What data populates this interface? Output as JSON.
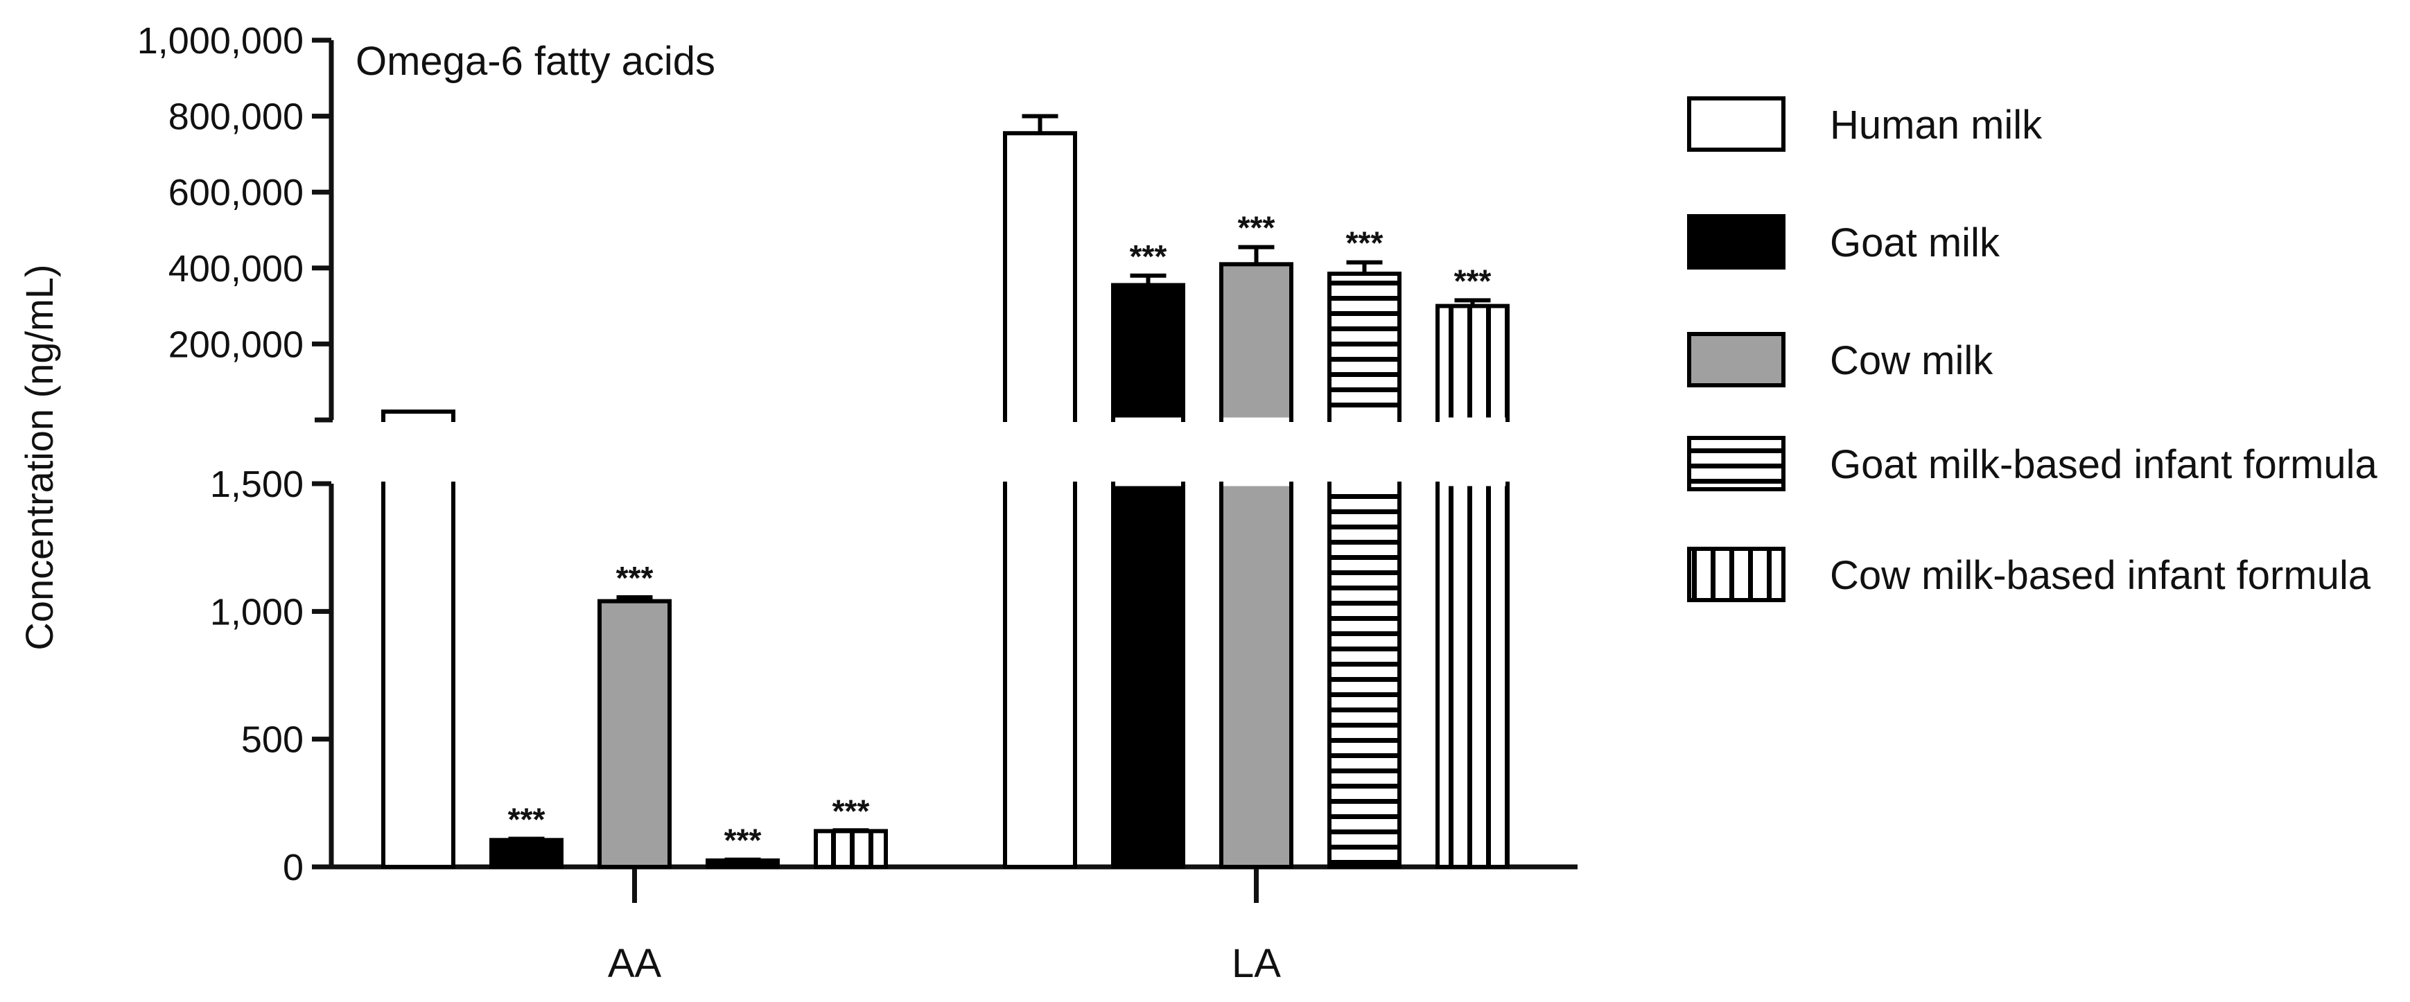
{
  "chart_data": {
    "type": "bar",
    "title": "Omega-6 fatty acids",
    "xlabel": "",
    "ylabel": "Concentration (ng/mL)",
    "categories": [
      "AA",
      "LA"
    ],
    "y_axis_broken": true,
    "lower_segment": {
      "ylim": [
        0,
        1500
      ],
      "ticks": [
        0,
        500,
        1000,
        1500
      ],
      "tick_labels": [
        "0",
        "500",
        "1,000",
        "1,500"
      ]
    },
    "upper_segment": {
      "ylim": [
        0,
        1000000
      ],
      "ticks": [
        200000,
        400000,
        600000,
        800000,
        1000000
      ],
      "tick_labels": [
        "200,000",
        "400,000",
        "600,000",
        "800,000",
        "1,000,000"
      ]
    },
    "series": [
      {
        "name": "Human milk",
        "pattern": "white",
        "values": [
          1700,
          755000
        ],
        "errors": [
          0,
          45000
        ],
        "significance": [
          "",
          ""
        ]
      },
      {
        "name": "Goat milk",
        "pattern": "black",
        "values": [
          105,
          355000
        ],
        "errors": [
          5,
          25000
        ],
        "significance": [
          "***",
          "***"
        ]
      },
      {
        "name": "Cow milk",
        "pattern": "gray",
        "values": [
          1040,
          410000
        ],
        "errors": [
          15,
          45000
        ],
        "significance": [
          "***",
          "***"
        ]
      },
      {
        "name": "Goat milk-based infant formula",
        "pattern": "horizontal-stripes",
        "values": [
          25,
          385000
        ],
        "errors": [
          3,
          30000
        ],
        "significance": [
          "***",
          "***"
        ]
      },
      {
        "name": "Cow milk-based infant formula",
        "pattern": "vertical-stripes",
        "values": [
          140,
          300000
        ],
        "errors": [
          3,
          15000
        ],
        "significance": [
          "***",
          "***"
        ]
      }
    ],
    "legend_position": "right",
    "grid": false,
    "colors": {
      "gray_fill": "#a0a0a0",
      "black_fill": "#000000",
      "axis": "#111111"
    }
  }
}
